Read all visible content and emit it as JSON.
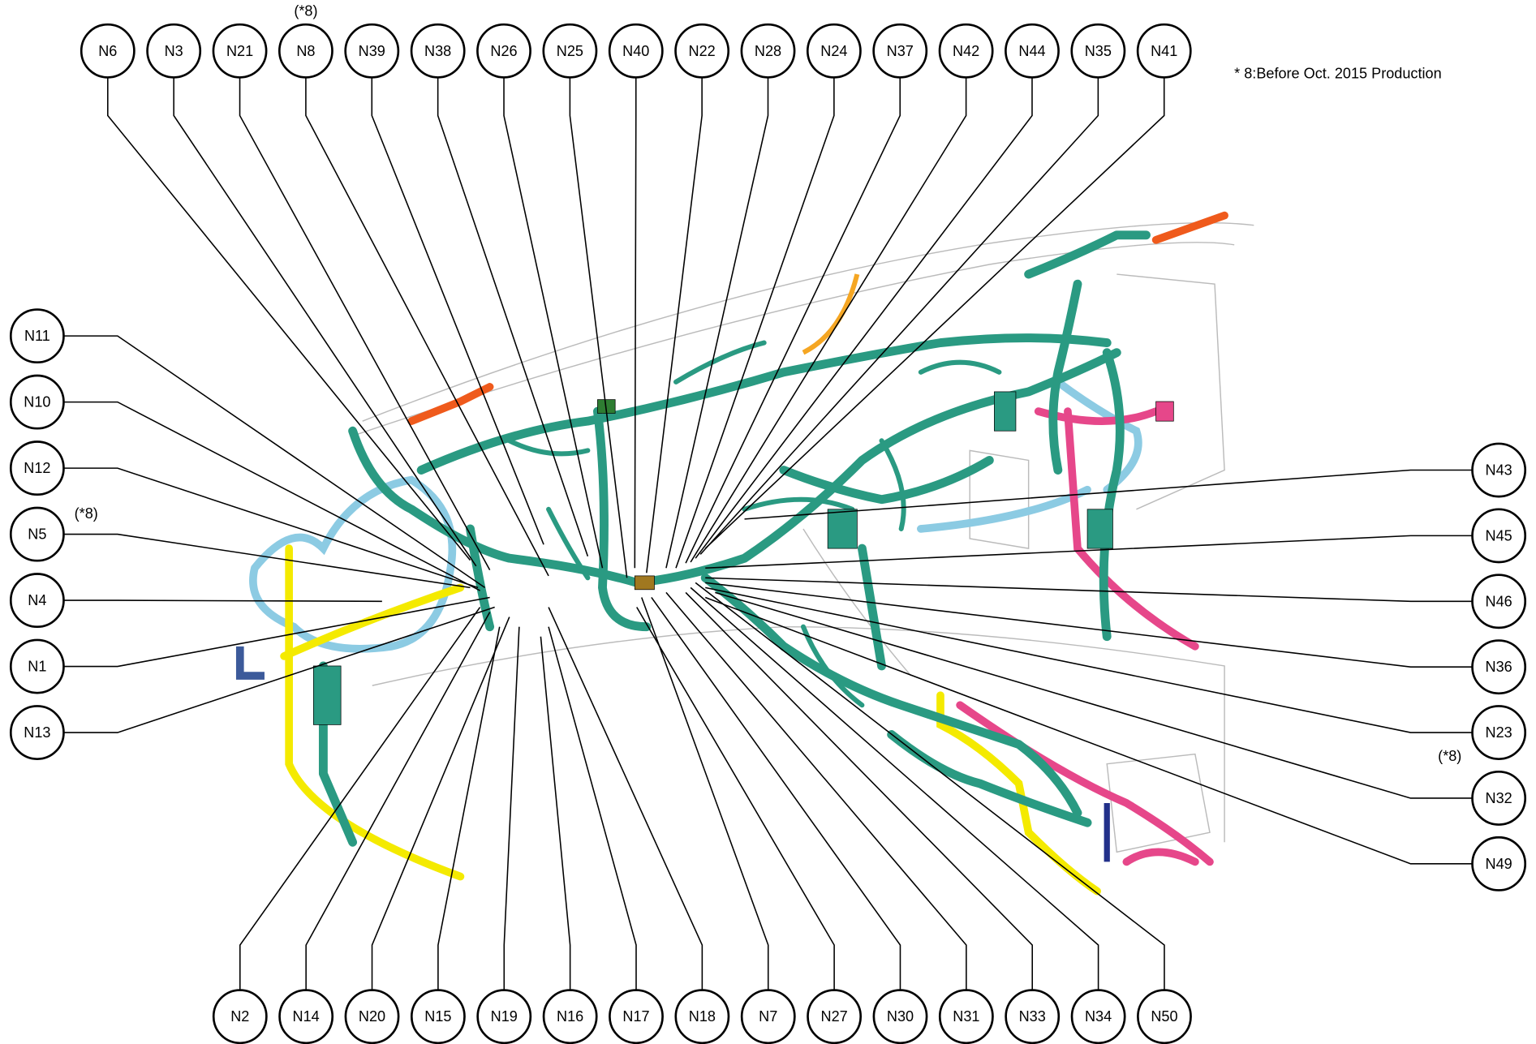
{
  "footnote": "* 8:Before Oct. 2015 Production",
  "top_row": [
    {
      "label": "N6"
    },
    {
      "label": "N3"
    },
    {
      "label": "N21"
    },
    {
      "label": "N8",
      "note": "(*8)"
    },
    {
      "label": "N39"
    },
    {
      "label": "N38"
    },
    {
      "label": "N26"
    },
    {
      "label": "N25"
    },
    {
      "label": "N40"
    },
    {
      "label": "N22"
    },
    {
      "label": "N28"
    },
    {
      "label": "N24"
    },
    {
      "label": "N37"
    },
    {
      "label": "N42"
    },
    {
      "label": "N44"
    },
    {
      "label": "N35"
    },
    {
      "label": "N41"
    }
  ],
  "left_column": [
    {
      "label": "N11"
    },
    {
      "label": "N10"
    },
    {
      "label": "N12"
    },
    {
      "label": "N5",
      "note": "(*8)"
    },
    {
      "label": "N4"
    },
    {
      "label": "N1"
    },
    {
      "label": "N13"
    }
  ],
  "right_column": [
    {
      "label": "N43"
    },
    {
      "label": "N45"
    },
    {
      "label": "N46"
    },
    {
      "label": "N36"
    },
    {
      "label": "N23"
    },
    {
      "label": "N32",
      "note": "(*8)"
    },
    {
      "label": "N49"
    }
  ],
  "bottom_row": [
    {
      "label": "N2"
    },
    {
      "label": "N14"
    },
    {
      "label": "N20"
    },
    {
      "label": "N15"
    },
    {
      "label": "N19"
    },
    {
      "label": "N16"
    },
    {
      "label": "N17"
    },
    {
      "label": "N18"
    },
    {
      "label": "N7"
    },
    {
      "label": "N27"
    },
    {
      "label": "N30"
    },
    {
      "label": "N31"
    },
    {
      "label": "N33"
    },
    {
      "label": "N34"
    },
    {
      "label": "N50"
    }
  ]
}
